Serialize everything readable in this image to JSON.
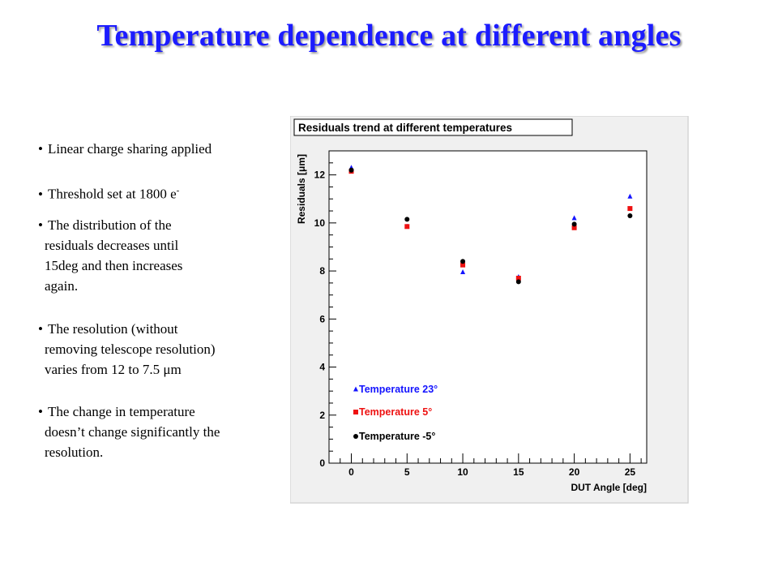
{
  "slide": {
    "title": "Temperature dependence at different angles",
    "bullets": [
      {
        "text": "Linear charge sharing applied"
      },
      {
        "text": "Threshold set at 1800 e",
        "sup": "-"
      },
      {
        "lines": [
          "The distribution of the",
          "residuals decreases until",
          "15deg and then increases",
          "again."
        ]
      },
      {
        "lines": [
          "The resolution (without",
          "removing telescope resolution)",
          "varies from 12 to 7.5 μm"
        ]
      },
      {
        "lines": [
          "The change in temperature",
          "doesn’t change significantly the",
          "resolution."
        ]
      }
    ]
  },
  "chart_data": {
    "type": "scatter",
    "title": "Residuals trend at different temperatures",
    "xlabel": "DUT Angle [deg]",
    "ylabel": "Residuals [μm]",
    "xlim": [
      -2,
      26.5
    ],
    "ylim": [
      0,
      13
    ],
    "x_ticks": [
      0,
      5,
      10,
      15,
      20,
      25
    ],
    "y_ticks": [
      0,
      2,
      4,
      6,
      8,
      10,
      12
    ],
    "grid": false,
    "legend_position": "bottom-left",
    "series": [
      {
        "name": "Temperature 23°",
        "marker": "triangle",
        "color": "#1414ff",
        "x": [
          0,
          5,
          10,
          15,
          20,
          25
        ],
        "y": [
          12.3,
          9.85,
          7.95,
          7.75,
          10.2,
          11.1
        ]
      },
      {
        "name": "Temperature 5°",
        "marker": "square",
        "color": "#ee1111",
        "x": [
          0,
          5,
          10,
          15,
          20,
          25
        ],
        "y": [
          12.15,
          9.85,
          8.25,
          7.7,
          9.8,
          10.6
        ]
      },
      {
        "name": "Temperature -5°",
        "marker": "circle",
        "color": "#000000",
        "x": [
          0,
          5,
          10,
          15,
          20,
          25
        ],
        "y": [
          12.2,
          10.15,
          8.4,
          7.55,
          9.95,
          10.3
        ]
      }
    ]
  }
}
